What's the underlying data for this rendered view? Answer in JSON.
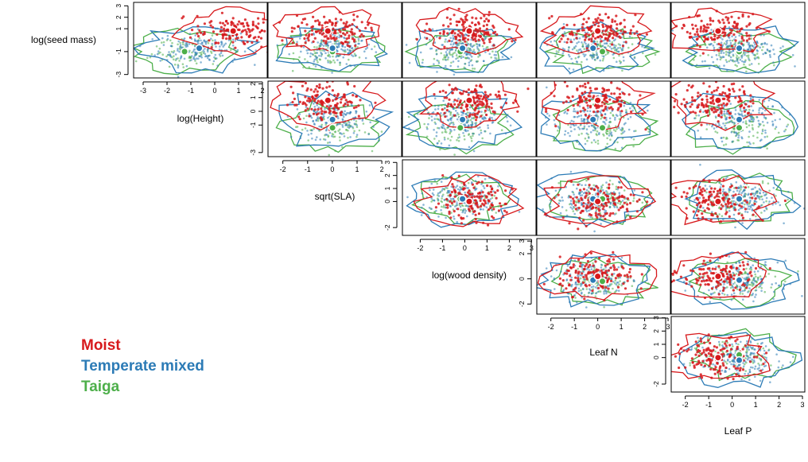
{
  "chart_data": {
    "type": "scatter",
    "layout": "upper-triangle pairs plot with convex-hull style envelopes and group centroids",
    "variables": [
      "log(seed mass)",
      "log(Height)",
      "sqrt(SLA)",
      "log(wood density)",
      "Leaf N",
      "Leaf P"
    ],
    "series": [
      {
        "name": "Moist",
        "color": "#d7191c"
      },
      {
        "name": "Temperate mixed",
        "color": "#2c7bb6"
      },
      {
        "name": "Taiga",
        "color": "#4daf4a"
      }
    ],
    "centroids": {
      "Moist": {
        "log(seed mass)": 0.8,
        "log(Height)": 0.8,
        "sqrt(SLA)": 0.0,
        "log(wood density)": 0.2,
        "Leaf N": 0.0,
        "Leaf P": -0.6
      },
      "Temperate mixed": {
        "log(seed mass)": -0.7,
        "log(Height)": -0.6,
        "sqrt(SLA)": 0.2,
        "log(wood density)": -0.1,
        "Leaf N": -0.2,
        "Leaf P": 0.3
      },
      "Taiga": {
        "log(seed mass)": -1.0,
        "log(Height)": -1.2,
        "sqrt(SLA)": 0.2,
        "log(wood density)": -0.2,
        "Leaf N": 0.2,
        "Leaf P": 0.3
      }
    },
    "axes": [
      {
        "name": "log(seed mass)",
        "side": "left",
        "ticks": [
          "-3",
          "-1",
          "1",
          "2",
          "3"
        ],
        "range": [
          -3.3,
          3.3
        ]
      },
      {
        "name": "log(Height)",
        "side": "bottom",
        "ticks": [
          "-3",
          "-2",
          "-1",
          "0",
          "1",
          "2"
        ],
        "range": [
          -3.4,
          2.2
        ]
      },
      {
        "name": "log(Height)",
        "side": "left",
        "ticks": [
          "-3",
          "-1",
          "0",
          "1",
          "2"
        ],
        "range": [
          -3.3,
          2.2
        ]
      },
      {
        "name": "sqrt(SLA)",
        "side": "bottom",
        "ticks": [
          "-2",
          "-1",
          "0",
          "1",
          "2"
        ],
        "range": [
          -2.6,
          2.8
        ]
      },
      {
        "name": "sqrt(SLA)",
        "side": "left",
        "ticks": [
          "-2",
          "0",
          "1",
          "2",
          "3"
        ],
        "range": [
          -2.6,
          3.2
        ]
      },
      {
        "name": "log(wood density)",
        "side": "bottom",
        "ticks": [
          "-2",
          "-1",
          "0",
          "1",
          "2",
          "3"
        ],
        "range": [
          -2.8,
          3.2
        ]
      },
      {
        "name": "log(wood density)",
        "side": "left",
        "ticks": [
          "-2",
          "0",
          "2",
          "3"
        ],
        "range": [
          -2.8,
          3.2
        ]
      },
      {
        "name": "Leaf N",
        "side": "bottom",
        "ticks": [
          "-2",
          "-1",
          "0",
          "1",
          "2",
          "3"
        ],
        "range": [
          -2.6,
          3.1
        ]
      },
      {
        "name": "Leaf N",
        "side": "left",
        "ticks": [
          "-2",
          "0",
          "1",
          "2",
          "3"
        ],
        "range": [
          -2.6,
          3.1
        ]
      },
      {
        "name": "Leaf P",
        "side": "bottom",
        "ticks": [
          "-2",
          "-1",
          "0",
          "1",
          "2",
          "3"
        ],
        "range": [
          -2.6,
          3.1
        ]
      }
    ],
    "diagonal_labels": [
      "log(seed mass)",
      "log(Height)",
      "sqrt(SLA)",
      "log(wood density)",
      "Leaf N",
      "Leaf P"
    ],
    "legend": {
      "position": "bottom-left",
      "entries": [
        "Moist",
        "Temperate mixed",
        "Taiga"
      ]
    }
  }
}
